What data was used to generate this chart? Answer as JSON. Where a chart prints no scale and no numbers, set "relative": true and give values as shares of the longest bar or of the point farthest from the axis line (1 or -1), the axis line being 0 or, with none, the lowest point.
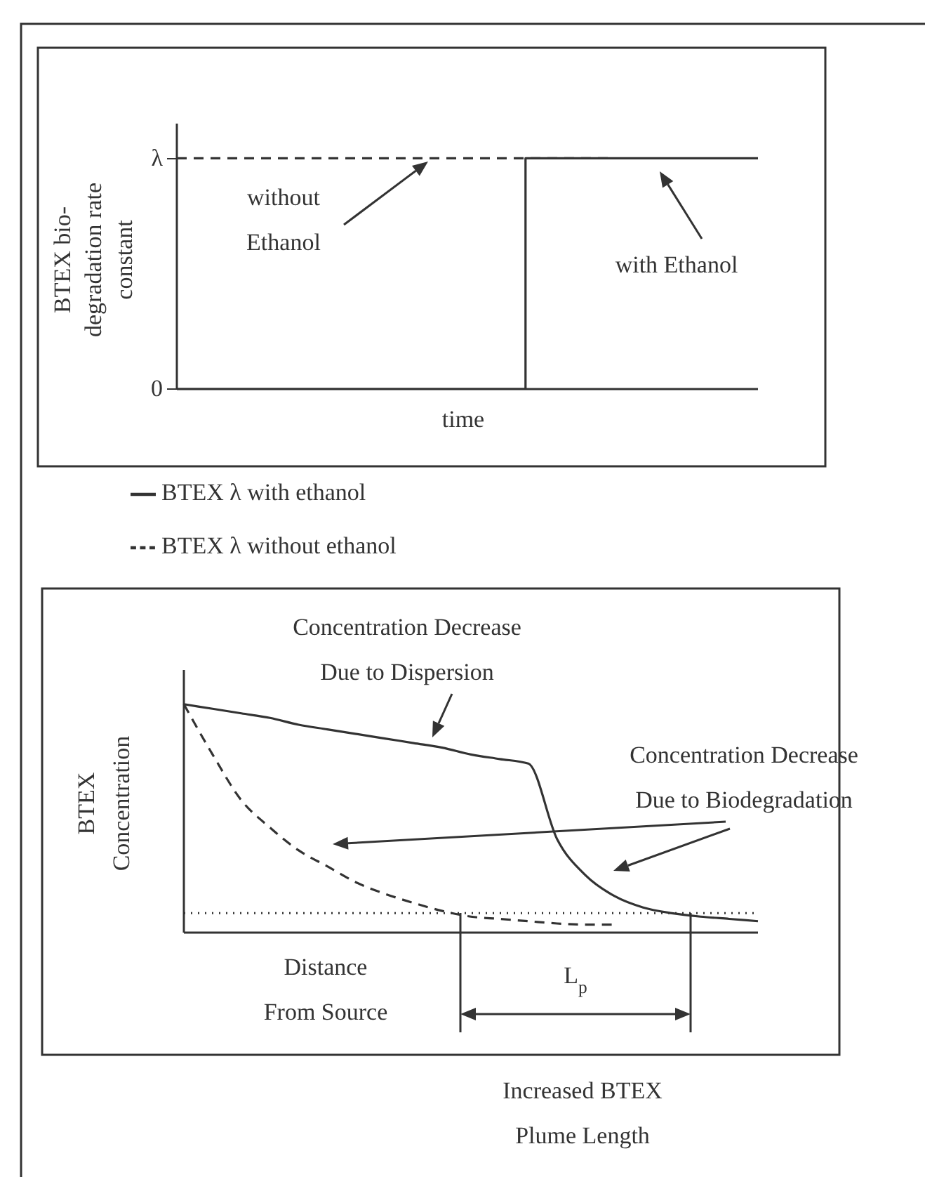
{
  "chart_data": [
    {
      "type": "line",
      "relative": true,
      "xlabel": "time",
      "ylabel": "BTEX bio-degradation rate constant",
      "categories": [
        null,
        null,
        null,
        null,
        null,
        null,
        null,
        null,
        null,
        null,
        null,
        null,
        null,
        null,
        null,
        null,
        null,
        null,
        null,
        null,
        null
      ],
      "legend": "bottom",
      "marker": "none",
      "annotations": [
        "without Ethanol",
        "with Ethanol",
        "λ",
        "0"
      ],
      "series": [
        {
          "name": "BTEX λ with ethanol",
          "type": "step",
          "color": "#333333",
          "line_style": "solid",
          "values": [
            0,
            0,
            0,
            0,
            0,
            0,
            0,
            0,
            0,
            0,
            0,
            0,
            1,
            1,
            1,
            1,
            1,
            1,
            1,
            1,
            1
          ]
        },
        {
          "name": "BTEX λ without ethanol",
          "type": "line",
          "color": "#333333",
          "line_style": "dashed",
          "values": [
            1,
            1,
            1,
            1,
            1,
            1,
            1,
            1,
            1,
            1,
            1,
            1,
            1,
            1,
            1,
            1,
            null,
            null,
            null,
            null,
            null
          ]
        }
      ]
    },
    {
      "type": "line",
      "relative": true,
      "xlabel": "Distance From Source",
      "ylabel": "BTEX Concentration",
      "categories": [
        null,
        null,
        null,
        null,
        null,
        null,
        null,
        null,
        null,
        null,
        null,
        null,
        null,
        null,
        null,
        null,
        null,
        null,
        null,
        null,
        null
      ],
      "marker": "none",
      "ref_lines": [
        {
          "axis": "y",
          "value": 0.085,
          "color": "#333333",
          "line_style": "dotted"
        }
      ],
      "annotations": [
        "Concentration Decrease Due to Dispersion",
        "Concentration Decrease Due to Biodegradation",
        "L$_{p}$",
        "Increased BTEX Plume Length"
      ],
      "series": [
        {
          "color": "#333333",
          "line_style": "solid",
          "values": [
            1,
            0.98,
            0.96,
            0.94,
            0.91,
            0.89,
            0.87,
            0.85,
            0.83,
            0.81,
            0.78,
            0.76,
            0.74,
            0.41,
            0.25,
            0.16,
            0.11,
            0.085,
            0.07,
            0.06,
            0.05
          ]
        },
        {
          "color": "#333333",
          "line_style": "dashed",
          "values": [
            1,
            0.78,
            0.58,
            0.46,
            0.36,
            0.29,
            0.22,
            0.17,
            0.13,
            0.095,
            0.07,
            0.06,
            0.05,
            0.04,
            0.035,
            0.035,
            null,
            null,
            null,
            null,
            null
          ]
        }
      ]
    }
  ]
}
